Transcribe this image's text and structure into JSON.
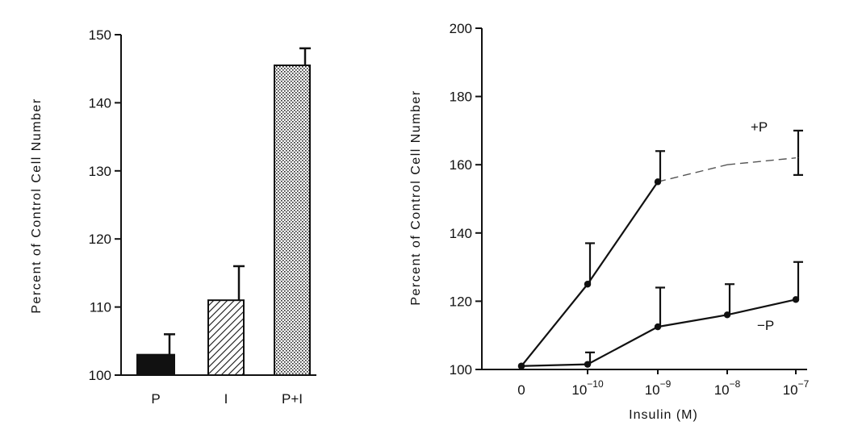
{
  "chart_data": [
    {
      "type": "bar",
      "ylabel": "Percent of Control Cell Number",
      "ylim": [
        100,
        150
      ],
      "yticks": [
        "100",
        "110",
        "120",
        "130",
        "140",
        "150"
      ],
      "categories": [
        "P",
        "I",
        "P+I"
      ],
      "values": [
        103,
        111,
        145.5
      ],
      "errors": [
        3,
        5,
        2.5
      ],
      "fills": [
        "solid-black",
        "diagonal-hatch",
        "stipple"
      ],
      "grid": false
    },
    {
      "type": "line",
      "xlabel": "Insulin (M)",
      "ylabel": "Percent of Control Cell Number",
      "ylim": [
        100,
        200
      ],
      "yticks": [
        "100",
        "120",
        "140",
        "160",
        "180",
        "200"
      ],
      "xticks": [
        {
          "base": "0",
          "exp": ""
        },
        {
          "base": "10",
          "exp": "−10"
        },
        {
          "base": "10",
          "exp": "−9"
        },
        {
          "base": "10",
          "exp": "−8"
        },
        {
          "base": "10",
          "exp": "−7"
        }
      ],
      "series": [
        {
          "name": "+P",
          "values": [
            101,
            125,
            155,
            160,
            162
          ],
          "errors": [
            0,
            12,
            9,
            0,
            8
          ],
          "shown_points": [
            true,
            true,
            true,
            false,
            false
          ]
        },
        {
          "name": "−P",
          "values": [
            101,
            101.5,
            112.5,
            116,
            120.5
          ],
          "errors": [
            0,
            3.5,
            11.5,
            9,
            11
          ],
          "shown_points": [
            true,
            true,
            true,
            true,
            true
          ]
        }
      ],
      "grid": false
    }
  ]
}
